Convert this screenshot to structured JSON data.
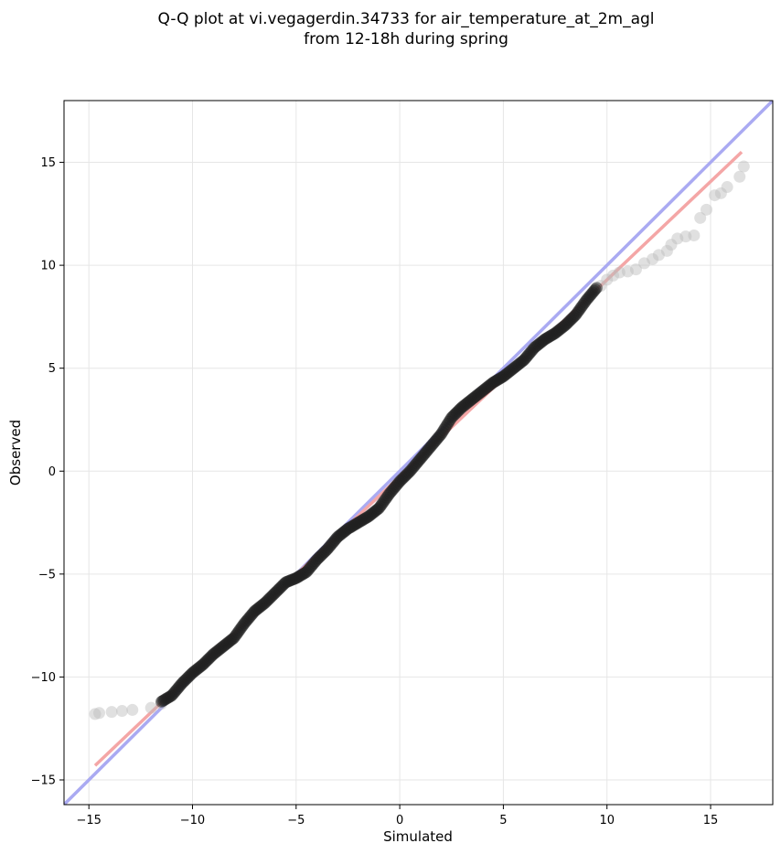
{
  "chart_data": {
    "type": "scatter",
    "title_line1": "Q-Q plot at vi.vegagerdin.34733 for air_temperature_at_2m_agl",
    "title_line2": "from 12-18h during spring",
    "xlabel": "Simulated",
    "ylabel": "Observed",
    "xlim": [
      -16.2,
      18.0
    ],
    "ylim": [
      -16.2,
      18.0
    ],
    "xticks": [
      -15,
      -10,
      -5,
      0,
      5,
      10,
      15
    ],
    "yticks": [
      -15,
      -10,
      -5,
      0,
      5,
      10,
      15
    ],
    "xtick_labels": [
      "−15",
      "−10",
      "−5",
      "0",
      "5",
      "10",
      "15"
    ],
    "ytick_labels": [
      "−15",
      "−10",
      "−5",
      "0",
      "5",
      "10",
      "15"
    ],
    "grid": true,
    "colors": {
      "identity_line": "#aaaaf2",
      "fit_line": "#f4a6a6",
      "points_tail": "#bbbbbb",
      "points_core": "#202020"
    },
    "identity_line": {
      "x": [
        -16.2,
        18.0
      ],
      "y": [
        -16.2,
        18.0
      ]
    },
    "fit_line": {
      "x": [
        -14.7,
        16.5
      ],
      "y": [
        -14.3,
        15.5
      ]
    },
    "tail_points": [
      {
        "x": -14.7,
        "y": -11.8
      },
      {
        "x": -14.5,
        "y": -11.75
      },
      {
        "x": -13.9,
        "y": -11.7
      },
      {
        "x": -13.4,
        "y": -11.65
      },
      {
        "x": -12.9,
        "y": -11.6
      },
      {
        "x": -12.0,
        "y": -11.5
      },
      {
        "x": -11.5,
        "y": -11.3
      },
      {
        "x": 9.7,
        "y": 9.0
      },
      {
        "x": 10.0,
        "y": 9.3
      },
      {
        "x": 10.3,
        "y": 9.5
      },
      {
        "x": 10.6,
        "y": 9.65
      },
      {
        "x": 11.0,
        "y": 9.7
      },
      {
        "x": 11.4,
        "y": 9.8
      },
      {
        "x": 11.8,
        "y": 10.1
      },
      {
        "x": 12.2,
        "y": 10.3
      },
      {
        "x": 12.5,
        "y": 10.5
      },
      {
        "x": 12.9,
        "y": 10.7
      },
      {
        "x": 13.1,
        "y": 11.0
      },
      {
        "x": 13.4,
        "y": 11.3
      },
      {
        "x": 13.8,
        "y": 11.4
      },
      {
        "x": 14.2,
        "y": 11.45
      },
      {
        "x": 14.5,
        "y": 12.3
      },
      {
        "x": 14.8,
        "y": 12.7
      },
      {
        "x": 15.2,
        "y": 13.4
      },
      {
        "x": 15.5,
        "y": 13.5
      },
      {
        "x": 15.8,
        "y": 13.8
      },
      {
        "x": 16.4,
        "y": 14.3
      },
      {
        "x": 16.6,
        "y": 14.8
      }
    ],
    "core_curve": [
      {
        "x": -11.5,
        "y": -11.2
      },
      {
        "x": -11.0,
        "y": -10.9
      },
      {
        "x": -10.5,
        "y": -10.3
      },
      {
        "x": -10.0,
        "y": -9.8
      },
      {
        "x": -9.5,
        "y": -9.4
      },
      {
        "x": -9.0,
        "y": -8.9
      },
      {
        "x": -8.5,
        "y": -8.5
      },
      {
        "x": -8.0,
        "y": -8.1
      },
      {
        "x": -7.5,
        "y": -7.4
      },
      {
        "x": -7.0,
        "y": -6.8
      },
      {
        "x": -6.5,
        "y": -6.4
      },
      {
        "x": -6.0,
        "y": -5.9
      },
      {
        "x": -5.5,
        "y": -5.4
      },
      {
        "x": -5.0,
        "y": -5.2
      },
      {
        "x": -4.5,
        "y": -4.9
      },
      {
        "x": -4.0,
        "y": -4.3
      },
      {
        "x": -3.5,
        "y": -3.8
      },
      {
        "x": -3.0,
        "y": -3.2
      },
      {
        "x": -2.5,
        "y": -2.8
      },
      {
        "x": -2.0,
        "y": -2.5
      },
      {
        "x": -1.5,
        "y": -2.2
      },
      {
        "x": -1.0,
        "y": -1.8
      },
      {
        "x": -0.5,
        "y": -1.1
      },
      {
        "x": 0.0,
        "y": -0.5
      },
      {
        "x": 0.5,
        "y": 0.0
      },
      {
        "x": 1.0,
        "y": 0.6
      },
      {
        "x": 1.5,
        "y": 1.2
      },
      {
        "x": 2.0,
        "y": 1.8
      },
      {
        "x": 2.5,
        "y": 2.6
      },
      {
        "x": 3.0,
        "y": 3.1
      },
      {
        "x": 3.5,
        "y": 3.5
      },
      {
        "x": 4.0,
        "y": 3.9
      },
      {
        "x": 4.5,
        "y": 4.3
      },
      {
        "x": 5.0,
        "y": 4.6
      },
      {
        "x": 5.5,
        "y": 5.0
      },
      {
        "x": 6.0,
        "y": 5.4
      },
      {
        "x": 6.5,
        "y": 6.0
      },
      {
        "x": 7.0,
        "y": 6.4
      },
      {
        "x": 7.5,
        "y": 6.7
      },
      {
        "x": 8.0,
        "y": 7.1
      },
      {
        "x": 8.5,
        "y": 7.6
      },
      {
        "x": 9.0,
        "y": 8.3
      },
      {
        "x": 9.5,
        "y": 8.9
      }
    ]
  }
}
